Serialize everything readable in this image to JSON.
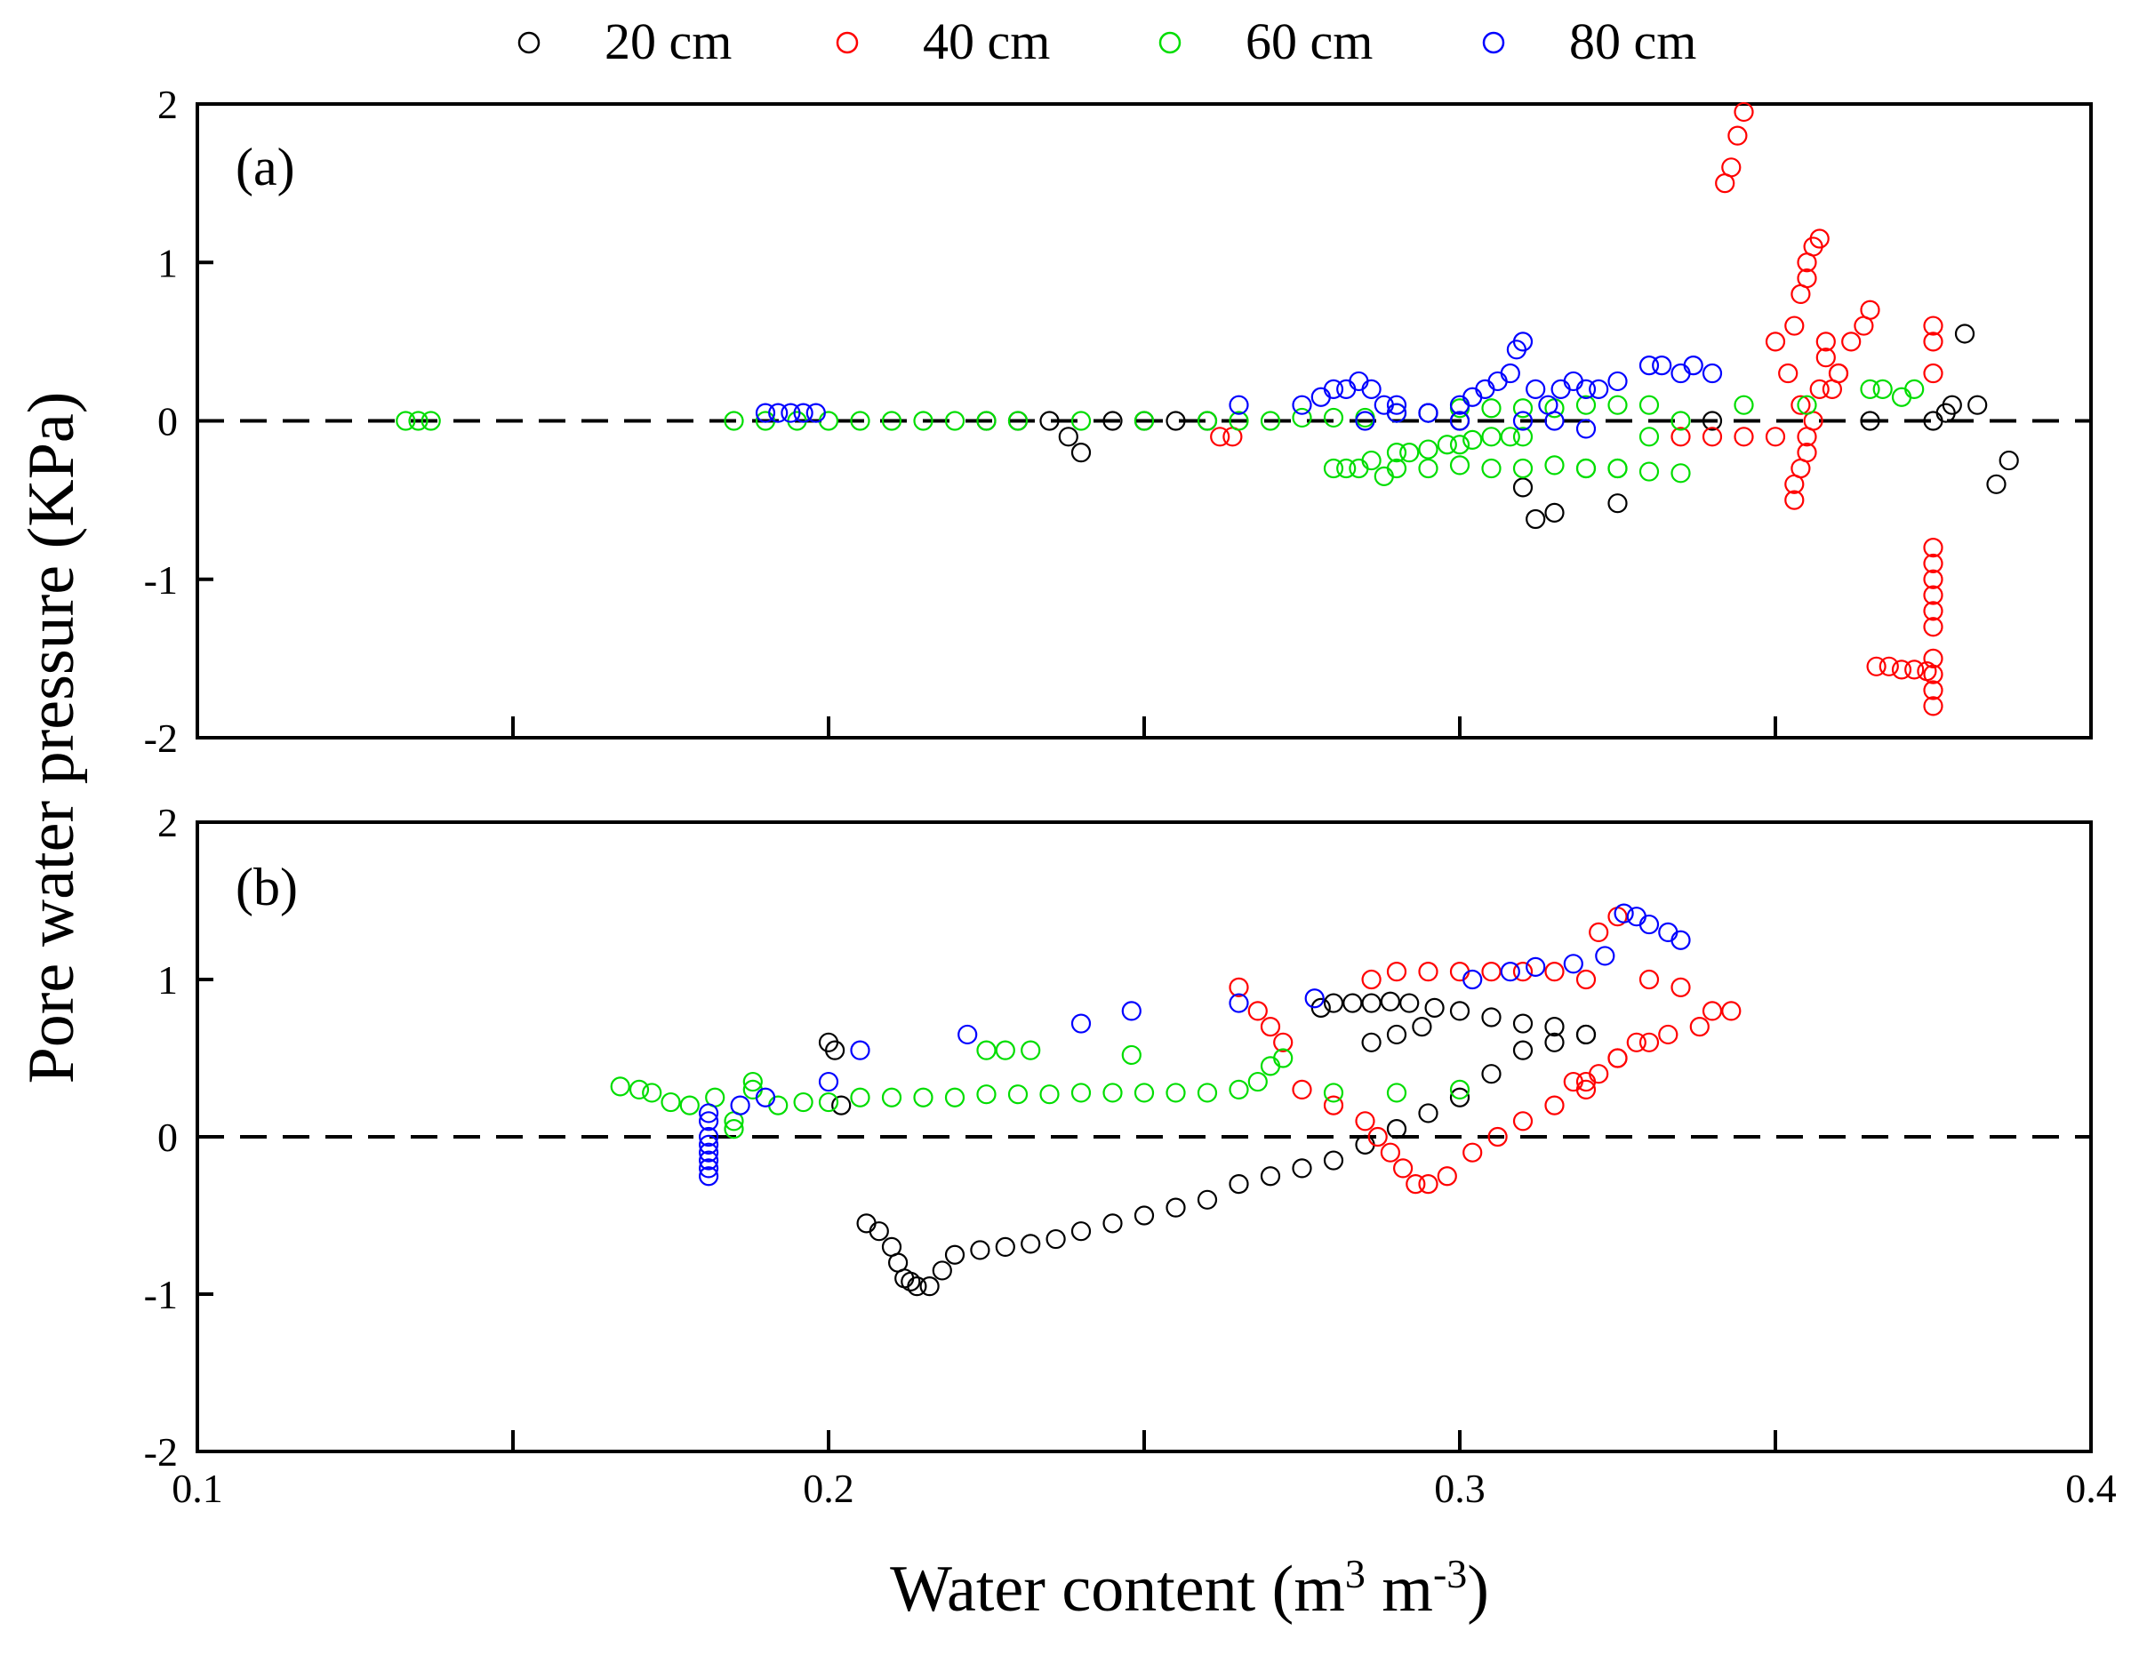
{
  "chart_data": {
    "type": "scatter",
    "xlabel": "Water content (m³ m⁻³)",
    "xlabel_parts": {
      "text": "Water content (m",
      "sup1": "3",
      "mid": " m",
      "sup2": "-3",
      "end": ")"
    },
    "ylabel": "Pore water pressure (KPa)",
    "xlim": [
      0.1,
      0.4
    ],
    "ylim": [
      -2,
      2
    ],
    "x_ticks": [
      0.1,
      0.2,
      0.3,
      0.4
    ],
    "x_tick_labels": [
      "0.1",
      "0.2",
      "0.3",
      "0.4"
    ],
    "y_ticks": [
      -2,
      -1,
      0,
      1,
      2
    ],
    "y_tick_labels": [
      "-2",
      "-1",
      "0",
      "1",
      "2"
    ],
    "reference_line_y": 0,
    "legend": [
      {
        "name": "20 cm",
        "color": "#000000"
      },
      {
        "name": "40 cm",
        "color": "#ff0000"
      },
      {
        "name": "60 cm",
        "color": "#00dd00"
      },
      {
        "name": "80 cm",
        "color": "#0000ff"
      }
    ],
    "legend_position": "top",
    "panels": [
      {
        "label": "(a)",
        "series": [
          {
            "name": "20 cm",
            "x": [
              0.225,
              0.23,
              0.235,
              0.238,
              0.24,
              0.245,
              0.25,
              0.255,
              0.26,
              0.3,
              0.31,
              0.312,
              0.315,
              0.325,
              0.34,
              0.365,
              0.375,
              0.377,
              0.378,
              0.38,
              0.382,
              0.385,
              0.387
            ],
            "y": [
              0,
              0,
              0,
              -0.1,
              -0.2,
              0,
              0,
              0,
              0,
              0,
              -0.42,
              -0.62,
              -0.58,
              -0.52,
              0,
              0,
              0,
              0.05,
              0.1,
              0.55,
              0.1,
              -0.4,
              -0.25
            ]
          },
          {
            "name": "40 cm",
            "x": [
              0.262,
              0.264,
              0.335,
              0.34,
              0.345,
              0.35,
              0.355,
              0.342,
              0.343,
              0.344,
              0.345,
              0.35,
              0.352,
              0.353,
              0.354,
              0.355,
              0.356,
              0.357,
              0.358,
              0.36,
              0.362,
              0.364,
              0.365,
              0.353,
              0.354,
              0.355,
              0.356,
              0.357,
              0.358,
              0.359,
              0.36,
              0.353,
              0.354,
              0.355,
              0.375,
              0.375,
              0.375,
              0.375,
              0.375,
              0.375,
              0.375,
              0.375,
              0.375,
              0.375,
              0.375,
              0.375,
              0.375,
              0.366,
              0.368,
              0.37,
              0.372,
              0.374
            ],
            "y": [
              -0.1,
              -0.1,
              -0.1,
              -0.1,
              -0.1,
              -0.1,
              -0.1,
              1.5,
              1.6,
              1.8,
              1.95,
              0.5,
              0.3,
              0.6,
              0.8,
              1.0,
              1.1,
              1.15,
              0.5,
              0.3,
              0.5,
              0.6,
              0.7,
              -0.4,
              -0.3,
              -0.2,
              0.0,
              0.2,
              0.4,
              0.2,
              0.3,
              -0.5,
              0.1,
              0.9,
              0.6,
              0.5,
              0.3,
              -0.8,
              -0.9,
              -1.0,
              -1.1,
              -1.2,
              -1.3,
              -1.5,
              -1.6,
              -1.7,
              -1.8,
              -1.55,
              -1.55,
              -1.57,
              -1.57,
              -1.58
            ]
          },
          {
            "name": "60 cm",
            "x": [
              0.133,
              0.135,
              0.137,
              0.185,
              0.19,
              0.195,
              0.2,
              0.205,
              0.21,
              0.215,
              0.22,
              0.225,
              0.23,
              0.24,
              0.25,
              0.26,
              0.265,
              0.27,
              0.275,
              0.28,
              0.285,
              0.29,
              0.295,
              0.3,
              0.305,
              0.31,
              0.315,
              0.32,
              0.325,
              0.33,
              0.335,
              0.28,
              0.282,
              0.284,
              0.286,
              0.288,
              0.29,
              0.292,
              0.295,
              0.298,
              0.3,
              0.302,
              0.305,
              0.308,
              0.31,
              0.315,
              0.32,
              0.325,
              0.33,
              0.335,
              0.29,
              0.295,
              0.3,
              0.305,
              0.31,
              0.32,
              0.325,
              0.33,
              0.345,
              0.355,
              0.365,
              0.367,
              0.37,
              0.372
            ],
            "y": [
              0,
              0,
              0,
              0,
              0,
              0,
              0,
              0,
              0,
              0,
              0,
              0,
              0,
              0,
              0,
              0,
              0,
              0,
              0.02,
              0.02,
              0.02,
              0.05,
              0.05,
              0.08,
              0.08,
              0.08,
              0.08,
              0.1,
              0.1,
              0.1,
              0.0,
              -0.3,
              -0.3,
              -0.3,
              -0.25,
              -0.35,
              -0.2,
              -0.2,
              -0.18,
              -0.15,
              -0.15,
              -0.12,
              -0.1,
              -0.1,
              -0.1,
              -0.28,
              -0.3,
              -0.3,
              -0.32,
              -0.33,
              -0.3,
              -0.3,
              -0.28,
              -0.3,
              -0.3,
              -0.3,
              -0.3,
              -0.1,
              0.1,
              0.1,
              0.2,
              0.2,
              0.15,
              0.2
            ]
          },
          {
            "name": "80 cm",
            "x": [
              0.19,
              0.192,
              0.194,
              0.196,
              0.198,
              0.265,
              0.275,
              0.278,
              0.28,
              0.282,
              0.284,
              0.286,
              0.288,
              0.29,
              0.295,
              0.3,
              0.302,
              0.304,
              0.306,
              0.308,
              0.309,
              0.31,
              0.312,
              0.314,
              0.316,
              0.318,
              0.32,
              0.322,
              0.325,
              0.33,
              0.332,
              0.335,
              0.337,
              0.34,
              0.285,
              0.29,
              0.295,
              0.3,
              0.31,
              0.315,
              0.32
            ],
            "y": [
              0.05,
              0.05,
              0.05,
              0.05,
              0.05,
              0.1,
              0.1,
              0.15,
              0.2,
              0.2,
              0.25,
              0.2,
              0.1,
              0.1,
              0.05,
              0.1,
              0.15,
              0.2,
              0.25,
              0.3,
              0.45,
              0.5,
              0.2,
              0.1,
              0.2,
              0.25,
              0.2,
              0.2,
              0.25,
              0.35,
              0.35,
              0.3,
              0.35,
              0.3,
              0.0,
              0.05,
              0.05,
              0.0,
              0.0,
              0.0,
              -0.05
            ]
          }
        ]
      },
      {
        "label": "(b)",
        "series": [
          {
            "name": "20 cm",
            "x": [
              0.2,
              0.201,
              0.202,
              0.206,
              0.208,
              0.21,
              0.211,
              0.212,
              0.213,
              0.214,
              0.216,
              0.218,
              0.22,
              0.224,
              0.228,
              0.232,
              0.236,
              0.24,
              0.245,
              0.25,
              0.255,
              0.26,
              0.265,
              0.27,
              0.275,
              0.28,
              0.285,
              0.29,
              0.295,
              0.3,
              0.305,
              0.31,
              0.315,
              0.32,
              0.278,
              0.28,
              0.283,
              0.286,
              0.289,
              0.292,
              0.296,
              0.3,
              0.305,
              0.31,
              0.315,
              0.32,
              0.286,
              0.29,
              0.294
            ],
            "y": [
              0.6,
              0.55,
              0.2,
              -0.55,
              -0.6,
              -0.7,
              -0.8,
              -0.9,
              -0.92,
              -0.95,
              -0.95,
              -0.85,
              -0.75,
              -0.72,
              -0.7,
              -0.68,
              -0.65,
              -0.6,
              -0.55,
              -0.5,
              -0.45,
              -0.4,
              -0.3,
              -0.25,
              -0.2,
              -0.15,
              -0.05,
              0.05,
              0.15,
              0.25,
              0.4,
              0.55,
              0.6,
              0.65,
              0.82,
              0.85,
              0.85,
              0.85,
              0.86,
              0.85,
              0.82,
              0.8,
              0.76,
              0.72,
              0.7,
              0.65,
              0.6,
              0.65,
              0.7
            ]
          },
          {
            "name": "40 cm",
            "x": [
              0.265,
              0.268,
              0.27,
              0.272,
              0.275,
              0.28,
              0.285,
              0.287,
              0.289,
              0.291,
              0.293,
              0.295,
              0.298,
              0.302,
              0.306,
              0.31,
              0.315,
              0.32,
              0.325,
              0.33,
              0.286,
              0.29,
              0.295,
              0.3,
              0.305,
              0.31,
              0.315,
              0.32,
              0.322,
              0.325,
              0.33,
              0.335,
              0.34,
              0.343,
              0.338,
              0.333,
              0.328,
              0.325,
              0.322,
              0.32,
              0.318
            ],
            "y": [
              0.95,
              0.8,
              0.7,
              0.6,
              0.3,
              0.2,
              0.1,
              0.0,
              -0.1,
              -0.2,
              -0.3,
              -0.3,
              -0.25,
              -0.1,
              0.0,
              0.1,
              0.2,
              0.3,
              0.5,
              0.6,
              1.0,
              1.05,
              1.05,
              1.05,
              1.05,
              1.05,
              1.05,
              1.0,
              1.3,
              1.4,
              1.0,
              0.95,
              0.8,
              0.8,
              0.7,
              0.65,
              0.6,
              0.5,
              0.4,
              0.35,
              0.35
            ]
          },
          {
            "name": "60 cm",
            "x": [
              0.167,
              0.17,
              0.172,
              0.175,
              0.178,
              0.182,
              0.185,
              0.188,
              0.192,
              0.196,
              0.2,
              0.205,
              0.21,
              0.215,
              0.22,
              0.225,
              0.23,
              0.235,
              0.24,
              0.245,
              0.25,
              0.255,
              0.26,
              0.265,
              0.268,
              0.27,
              0.272,
              0.28,
              0.29,
              0.3,
              0.185,
              0.188,
              0.225,
              0.228,
              0.232,
              0.248
            ],
            "y": [
              0.32,
              0.3,
              0.28,
              0.22,
              0.2,
              0.25,
              0.05,
              0.3,
              0.2,
              0.22,
              0.22,
              0.25,
              0.25,
              0.25,
              0.25,
              0.27,
              0.27,
              0.27,
              0.28,
              0.28,
              0.28,
              0.28,
              0.28,
              0.3,
              0.35,
              0.45,
              0.5,
              0.28,
              0.28,
              0.3,
              0.1,
              0.35,
              0.55,
              0.55,
              0.55,
              0.52
            ]
          },
          {
            "name": "80 cm",
            "x": [
              0.181,
              0.181,
              0.181,
              0.181,
              0.181,
              0.181,
              0.181,
              0.181,
              0.186,
              0.19,
              0.2,
              0.205,
              0.222,
              0.24,
              0.248,
              0.265,
              0.277,
              0.302,
              0.308,
              0.312,
              0.318,
              0.323,
              0.326,
              0.328,
              0.33,
              0.333,
              0.335
            ],
            "y": [
              0.1,
              0.0,
              -0.05,
              -0.1,
              -0.15,
              -0.2,
              -0.25,
              0.15,
              0.2,
              0.25,
              0.35,
              0.55,
              0.65,
              0.72,
              0.8,
              0.85,
              0.88,
              1.0,
              1.05,
              1.08,
              1.1,
              1.15,
              1.42,
              1.4,
              1.35,
              1.3,
              1.25
            ]
          }
        ]
      }
    ]
  }
}
